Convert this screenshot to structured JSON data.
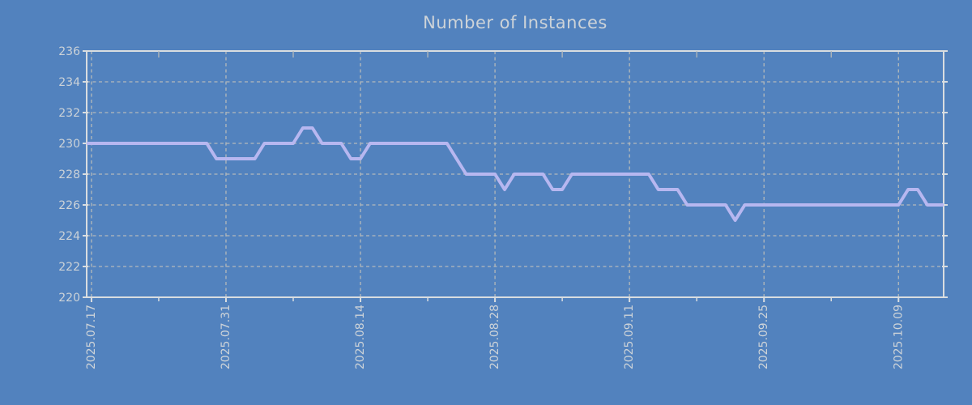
{
  "colors": {
    "background": "#5282be",
    "line": "#b7b7f0",
    "grid": "#b4b9ba",
    "axis_border": "#d9dde0",
    "text": "#cdd3d8"
  },
  "chart_data": {
    "type": "line",
    "title": "Number of Instances",
    "xlabel": "",
    "ylabel": "",
    "ylim": [
      220,
      236
    ],
    "y_ticks": [
      236,
      234,
      232,
      230,
      228,
      226,
      224,
      222,
      220
    ],
    "x_tick_labels": [
      "2025.07.17",
      "2025.07.31",
      "2025.08.14",
      "2025.08.28",
      "2025.09.11",
      "2025.09.25",
      "2025.10.09"
    ],
    "x_major_tick_indices": [
      0,
      14,
      28,
      42,
      56,
      70,
      84
    ],
    "x_minor_tick_indices": [
      7,
      21,
      35,
      49,
      63,
      77
    ],
    "x_start_label": "2025.07.17",
    "x_interval": "daily",
    "grid": "dotted",
    "legend_position": "none",
    "series": [
      {
        "name": "Number of Instances",
        "values": [
          230,
          230,
          230,
          230,
          230,
          230,
          230,
          230,
          230,
          230,
          230,
          230,
          230,
          229,
          229,
          229,
          229,
          229,
          230,
          230,
          230,
          230,
          231,
          231,
          230,
          230,
          230,
          229,
          229,
          230,
          230,
          230,
          230,
          230,
          230,
          230,
          230,
          230,
          229,
          228,
          228,
          228,
          228,
          227,
          228,
          228,
          228,
          228,
          227,
          227,
          228,
          228,
          228,
          228,
          228,
          228,
          228,
          228,
          228,
          227,
          227,
          227,
          226,
          226,
          226,
          226,
          226,
          225,
          226,
          226,
          226,
          226,
          226,
          226,
          226,
          226,
          226,
          226,
          226,
          226,
          226,
          226,
          226,
          226,
          226,
          227,
          227,
          226,
          226
        ]
      }
    ]
  }
}
